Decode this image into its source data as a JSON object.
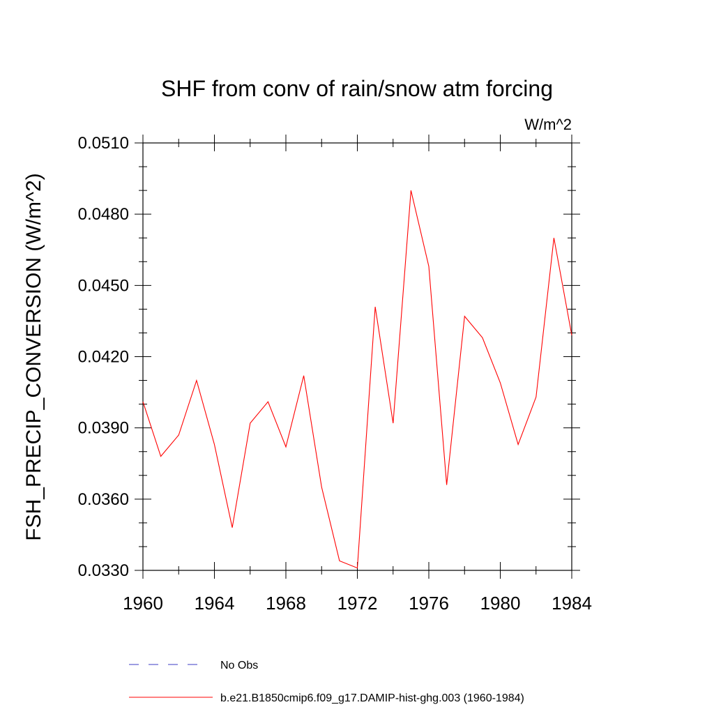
{
  "chart_data": {
    "type": "line",
    "title": "SHF from conv of rain/snow atm forcing",
    "units_label": "W/m^2",
    "xlabel": "",
    "ylabel": "FSH_PRECIP_CONVERSION  (W/m^2)",
    "xlim": [
      1960,
      1984
    ],
    "ylim": [
      0.033,
      0.051
    ],
    "x_ticks": [
      1960,
      1964,
      1968,
      1972,
      1976,
      1980,
      1984
    ],
    "x_tick_labels": [
      "1960",
      "1964",
      "1968",
      "1972",
      "1976",
      "1980",
      "1984"
    ],
    "y_ticks": [
      0.033,
      0.036,
      0.039,
      0.042,
      0.045,
      0.048,
      0.051
    ],
    "y_tick_labels": [
      "0.0330",
      "0.0360",
      "0.0390",
      "0.0420",
      "0.0450",
      "0.0480",
      "0.0510"
    ],
    "grid": false,
    "legend_position": "bottom",
    "series": [
      {
        "name": "b.e21.B1850cmip6.f09_g17.DAMIP-hist-ghg.003 (1960-1984)",
        "color": "#ff0000",
        "style": "solid",
        "x": [
          1960,
          1961,
          1962,
          1963,
          1964,
          1965,
          1966,
          1967,
          1968,
          1969,
          1970,
          1971,
          1972,
          1973,
          1974,
          1975,
          1976,
          1977,
          1978,
          1979,
          1980,
          1981,
          1982,
          1983,
          1984
        ],
        "values": [
          0.0401,
          0.0378,
          0.0387,
          0.041,
          0.0383,
          0.0348,
          0.0392,
          0.0401,
          0.0382,
          0.0412,
          0.0365,
          0.0334,
          0.0331,
          0.0441,
          0.0392,
          0.049,
          0.0458,
          0.0366,
          0.0437,
          0.0428,
          0.0409,
          0.0383,
          0.0403,
          0.047,
          0.0429
        ]
      }
    ],
    "legend": [
      {
        "label": "No Obs",
        "color": "#3b3bc4",
        "style": "dashed"
      },
      {
        "label": "b.e21.B1850cmip6.f09_g17.DAMIP-hist-ghg.003 (1960-1984)",
        "color": "#ff0000",
        "style": "solid"
      }
    ]
  }
}
